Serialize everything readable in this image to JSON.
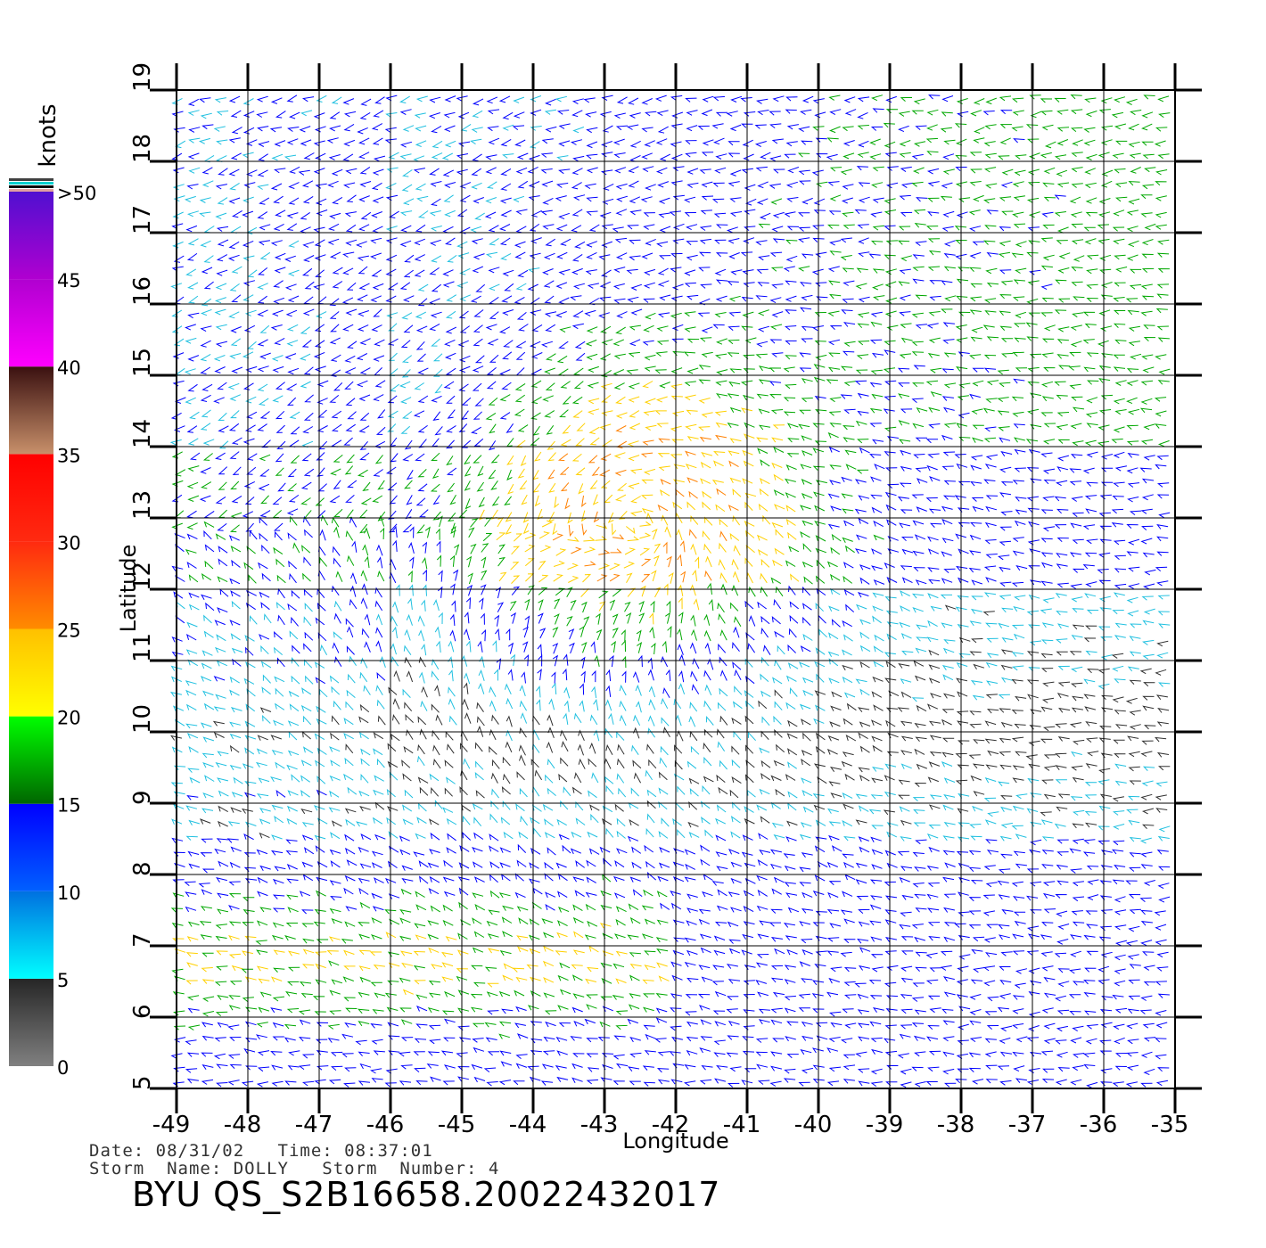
{
  "chart_data": {
    "type": "wind-barb-map",
    "xlabel": "Longitude",
    "ylabel": "Latitude",
    "xlim": [
      -49,
      -35
    ],
    "ylim": [
      5,
      19
    ],
    "x_ticks": [
      -49,
      -48,
      -47,
      -46,
      -45,
      -44,
      -43,
      -42,
      -41,
      -40,
      -39,
      -38,
      -37,
      -36,
      -35
    ],
    "y_ticks": [
      5,
      6,
      7,
      8,
      9,
      10,
      11,
      12,
      13,
      14,
      15,
      16,
      17,
      18,
      19
    ],
    "x_tick_labels": [
      "-49",
      "-48",
      "-47",
      "-46",
      "-45",
      "-44",
      "-43",
      "-42",
      "-41",
      "-40",
      "-39",
      "-38",
      "-37",
      "-36",
      "-35"
    ],
    "y_tick_labels": [
      "5",
      "6",
      "7",
      "8",
      "9",
      "10",
      "11",
      "12",
      "13",
      "14",
      "15",
      "16",
      "17",
      "18",
      "19"
    ],
    "grid": true,
    "storm_center": {
      "lon": -42.5,
      "lat": 12.9
    },
    "colorbar": {
      "title": "knots",
      "labels": [
        "0",
        "5",
        "10",
        "15",
        "20",
        "25",
        "30",
        "35",
        "40",
        "45",
        ">50"
      ],
      "segments": [
        {
          "min": 0,
          "max": 5,
          "colors": [
            "#808080",
            "#262626"
          ]
        },
        {
          "min": 5,
          "max": 10,
          "colors": [
            "#00ffff",
            "#0070e0"
          ]
        },
        {
          "min": 10,
          "max": 15,
          "colors": [
            "#0060ff",
            "#0000ff"
          ]
        },
        {
          "min": 15,
          "max": 20,
          "colors": [
            "#006600",
            "#00ff00"
          ]
        },
        {
          "min": 20,
          "max": 25,
          "colors": [
            "#ffff00",
            "#ffc000"
          ]
        },
        {
          "min": 25,
          "max": 30,
          "colors": [
            "#ff8c00",
            "#ff2a10"
          ]
        },
        {
          "min": 30,
          "max": 35,
          "colors": [
            "#ff2a10",
            "#ff0000"
          ]
        },
        {
          "min": 35,
          "max": 40,
          "colors": [
            "#c8906a",
            "#3a1010"
          ]
        },
        {
          "min": 40,
          "max": 45,
          "colors": [
            "#ff00ff",
            "#b000d0"
          ]
        },
        {
          "min": 45,
          "max": 50,
          "colors": [
            "#b000d0",
            "#5010d0"
          ]
        }
      ],
      "cap_colors": [
        "#e0a0a0",
        "#000000",
        "#00d0d0",
        "#404040"
      ]
    },
    "speed_colors": [
      "#303030",
      "#20c0e0",
      "#0000ff",
      "#00a800",
      "#ffd000",
      "#ff8000",
      "#e00000"
    ]
  },
  "footer": {
    "date_label": "Date:",
    "date": "08/31/02",
    "time_label": "Time:",
    "time": "08:37:01",
    "storm_name_label": "Storm  Name:",
    "storm_name": "DOLLY",
    "storm_number_label": "Storm  Number:",
    "storm_number": "4",
    "product": "BYU  QS_S2B16658.20022432017"
  }
}
